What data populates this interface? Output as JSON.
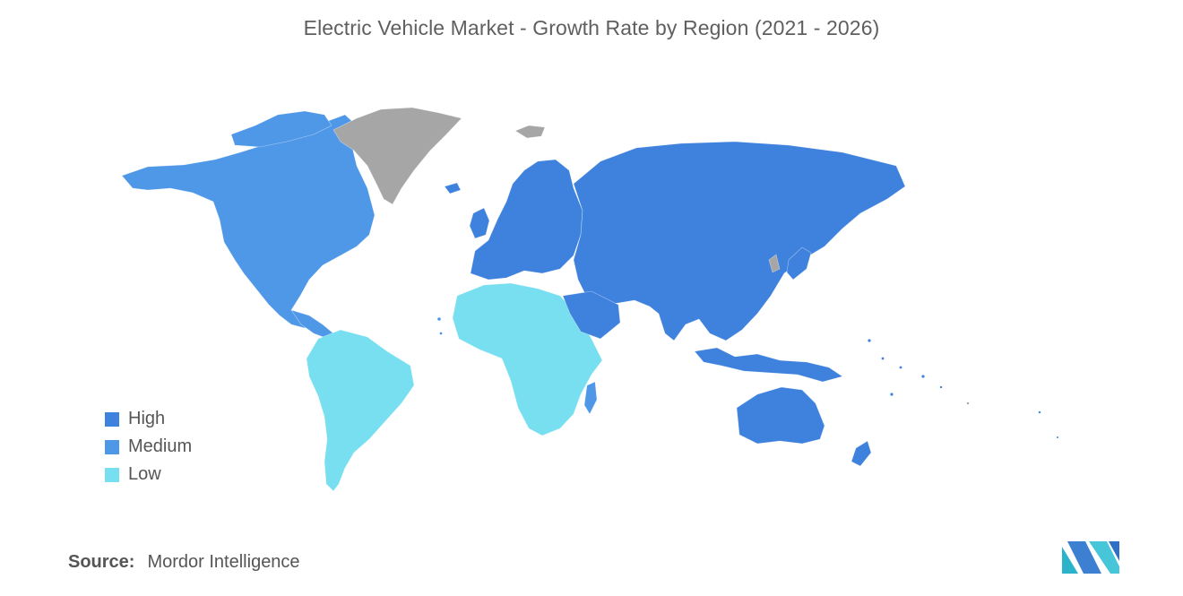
{
  "title": "Electric Vehicle Market - Growth Rate by Region (2021 - 2026)",
  "legend": [
    {
      "label": "High",
      "color": "#3f82de"
    },
    {
      "label": "Medium",
      "color": "#4f98e8"
    },
    {
      "label": "Low",
      "color": "#78dff0"
    }
  ],
  "no_data_color": "#a6a6a6",
  "regions": [
    {
      "name": "North America",
      "level": "Medium"
    },
    {
      "name": "South America",
      "level": "Low"
    },
    {
      "name": "Africa",
      "level": "Low"
    },
    {
      "name": "Europe",
      "level": "High"
    },
    {
      "name": "Asia-Pacific",
      "level": "High"
    },
    {
      "name": "Australia",
      "level": "High"
    },
    {
      "name": "Greenland",
      "level": "No data"
    }
  ],
  "source": {
    "label": "Source:",
    "value": "Mordor Intelligence"
  },
  "logo_icon": "mordor-intelligence-logo-icon"
}
